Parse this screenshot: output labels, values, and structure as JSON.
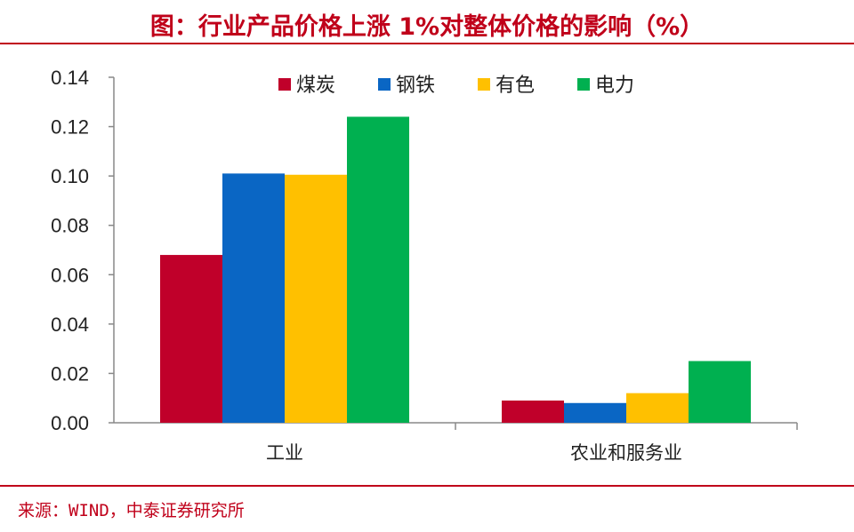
{
  "header": {
    "title": "图：行业产品价格上涨 1%对整体价格的影响（%）"
  },
  "footer": {
    "source": "来源：WIND，中泰证券研究所"
  },
  "colors": {
    "accent": "#c0001a"
  },
  "chart_data": {
    "type": "bar",
    "title": "图：行业产品价格上涨 1%对整体价格的影响（%）",
    "xlabel": "",
    "ylabel": "",
    "categories": [
      "工业",
      "农业和服务业"
    ],
    "series": [
      {
        "name": "煤炭",
        "color": "#c0002a",
        "values": [
          0.068,
          0.009
        ]
      },
      {
        "name": "钢铁",
        "color": "#0a66c4",
        "values": [
          0.101,
          0.008
        ]
      },
      {
        "name": "有色",
        "color": "#ffc000",
        "values": [
          0.1005,
          0.012
        ]
      },
      {
        "name": "电力",
        "color": "#00b050",
        "values": [
          0.124,
          0.025
        ]
      }
    ],
    "ylim": [
      0,
      0.14
    ],
    "yticks": [
      "0.00",
      "0.02",
      "0.04",
      "0.06",
      "0.08",
      "0.10",
      "0.12",
      "0.14"
    ],
    "grid": false,
    "legend": "top"
  }
}
